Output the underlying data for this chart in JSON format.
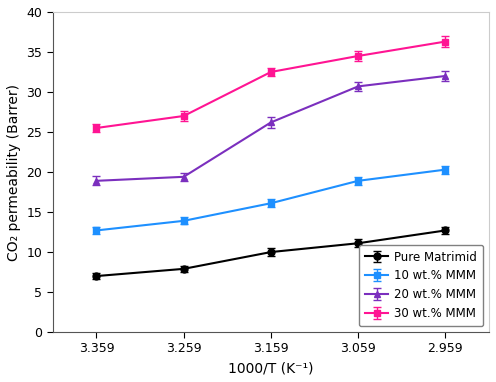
{
  "x": [
    3.359,
    3.259,
    3.159,
    3.059,
    2.959
  ],
  "series": [
    {
      "label": "Pure Matrimid",
      "color": "#000000",
      "marker": "o",
      "y": [
        7.0,
        7.9,
        10.0,
        11.1,
        12.7
      ],
      "yerr": [
        0.4,
        0.4,
        0.45,
        0.5,
        0.45
      ]
    },
    {
      "label": "10 wt.% MMM",
      "color": "#1E90FF",
      "marker": "s",
      "y": [
        12.7,
        13.9,
        16.1,
        18.9,
        20.3
      ],
      "yerr": [
        0.45,
        0.45,
        0.5,
        0.5,
        0.5
      ]
    },
    {
      "label": "20 wt.% MMM",
      "color": "#7B2FBE",
      "marker": "^",
      "y": [
        18.9,
        19.4,
        26.2,
        30.7,
        32.0
      ],
      "yerr": [
        0.55,
        0.5,
        0.65,
        0.6,
        0.6
      ]
    },
    {
      "label": "30 wt.% MMM",
      "color": "#FF1493",
      "marker": "s",
      "y": [
        25.5,
        27.0,
        32.5,
        34.5,
        36.3
      ],
      "yerr": [
        0.55,
        0.6,
        0.55,
        0.6,
        0.65
      ]
    }
  ],
  "xlabel": "1000/T (K⁻¹)",
  "ylabel": "CO₂ permeability (Barrer)",
  "xlim_left": 3.409,
  "xlim_right": 2.909,
  "ylim": [
    0,
    40
  ],
  "xticks": [
    3.359,
    3.259,
    3.159,
    3.059,
    2.959
  ],
  "yticks": [
    0,
    5,
    10,
    15,
    20,
    25,
    30,
    35,
    40
  ],
  "background_color": "#ffffff",
  "legend_loc": "lower right",
  "figsize": [
    4.96,
    3.82
  ],
  "dpi": 100
}
